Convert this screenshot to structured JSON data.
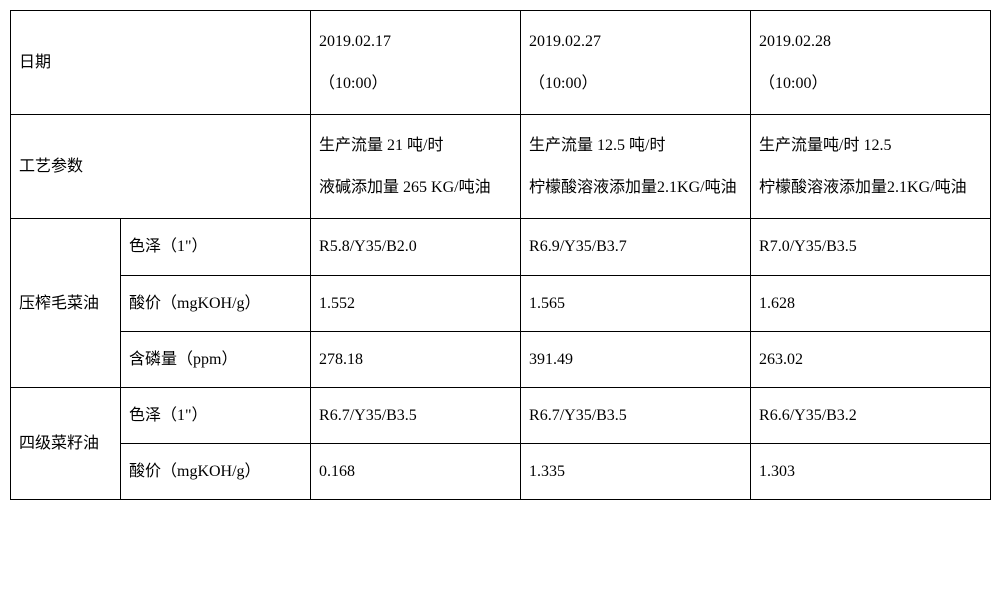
{
  "border_color": "#000000",
  "background_color": "#ffffff",
  "text_color": "#000000",
  "font_family": "SimSun",
  "cell_fontsize": 16,
  "header": {
    "date_label": "日期",
    "process_label": "工艺参数",
    "dates": {
      "d1": {
        "date": "2019.02.17",
        "time": "（10:00）"
      },
      "d2": {
        "date": "2019.02.27",
        "time": "（10:00）"
      },
      "d3": {
        "date": "2019.02.28",
        "time": "（10:00）"
      }
    }
  },
  "process": {
    "d1": {
      "l1": "生产流量 21 吨/时",
      "l2": "液碱添加量 265 KG/吨油"
    },
    "d2": {
      "l1": "生产流量 12.5 吨/时",
      "l2": "柠檬酸溶液添加量2.1KG/吨油"
    },
    "d3": {
      "l1": "生产流量吨/时 12.5",
      "l2": "柠檬酸溶液添加量2.1KG/吨油"
    }
  },
  "group1": {
    "label": "压榨毛菜油",
    "rows": {
      "color": {
        "label": "色泽（1\"）",
        "d1": "R5.8/Y35/B2.0",
        "d2": "R6.9/Y35/B3.7",
        "d3": "R7.0/Y35/B3.5"
      },
      "acid": {
        "label": "酸价（mgKOH/g）",
        "d1": "1.552",
        "d2": "1.565",
        "d3": "1.628"
      },
      "phos": {
        "label": "含磷量（ppm）",
        "d1": "278.18",
        "d2": "391.49",
        "d3": "263.02"
      }
    }
  },
  "group2": {
    "label": "四级菜籽油",
    "rows": {
      "color": {
        "label": "色泽（1\"）",
        "d1": "R6.7/Y35/B3.5",
        "d2": "R6.7/Y35/B3.5",
        "d3": "R6.6/Y35/B3.2"
      },
      "acid": {
        "label": "酸价（mgKOH/g）",
        "d1": "0.168",
        "d2": "1.335",
        "d3": "1.303"
      }
    }
  }
}
